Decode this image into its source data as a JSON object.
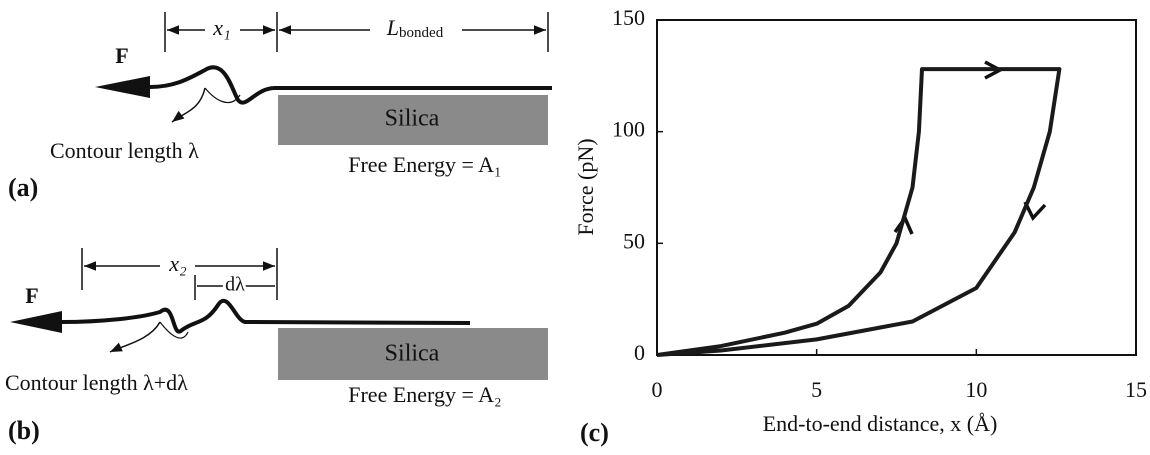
{
  "panel_a": {
    "label": "(a)",
    "force": "F",
    "x_label": "x₁",
    "bonded_main": "L",
    "bonded_sub": "bonded",
    "contour": "Contour length λ",
    "substrate": "Silica",
    "energy": "Free Energy = A₁"
  },
  "panel_b": {
    "label": "(b)",
    "force": "F",
    "x_label": "x₂",
    "delta": "dλ",
    "contour": "Contour length λ+dλ",
    "substrate": "Silica",
    "energy": "Free Energy = A₂"
  },
  "chart_data": {
    "type": "line",
    "panel_label": "(c)",
    "xlabel": "End-to-end distance, x (Å)",
    "ylabel": "Force (pN)",
    "xlim": [
      0,
      15
    ],
    "ylim": [
      0,
      150
    ],
    "xticks": [
      0,
      5,
      10,
      15
    ],
    "yticks": [
      0,
      50,
      100,
      150
    ],
    "series": [
      {
        "color": "#1a1a1a",
        "x": [
          0,
          2,
          4,
          5,
          6,
          7,
          7.5,
          8,
          8.2,
          8.3,
          12.6,
          12.3,
          11.8,
          11.2,
          10,
          8,
          5,
          2,
          0
        ],
        "values": [
          0,
          4,
          10,
          14,
          22,
          37,
          50,
          75,
          100,
          128,
          128,
          100,
          75,
          55,
          30,
          15,
          7,
          2,
          0
        ]
      }
    ]
  }
}
